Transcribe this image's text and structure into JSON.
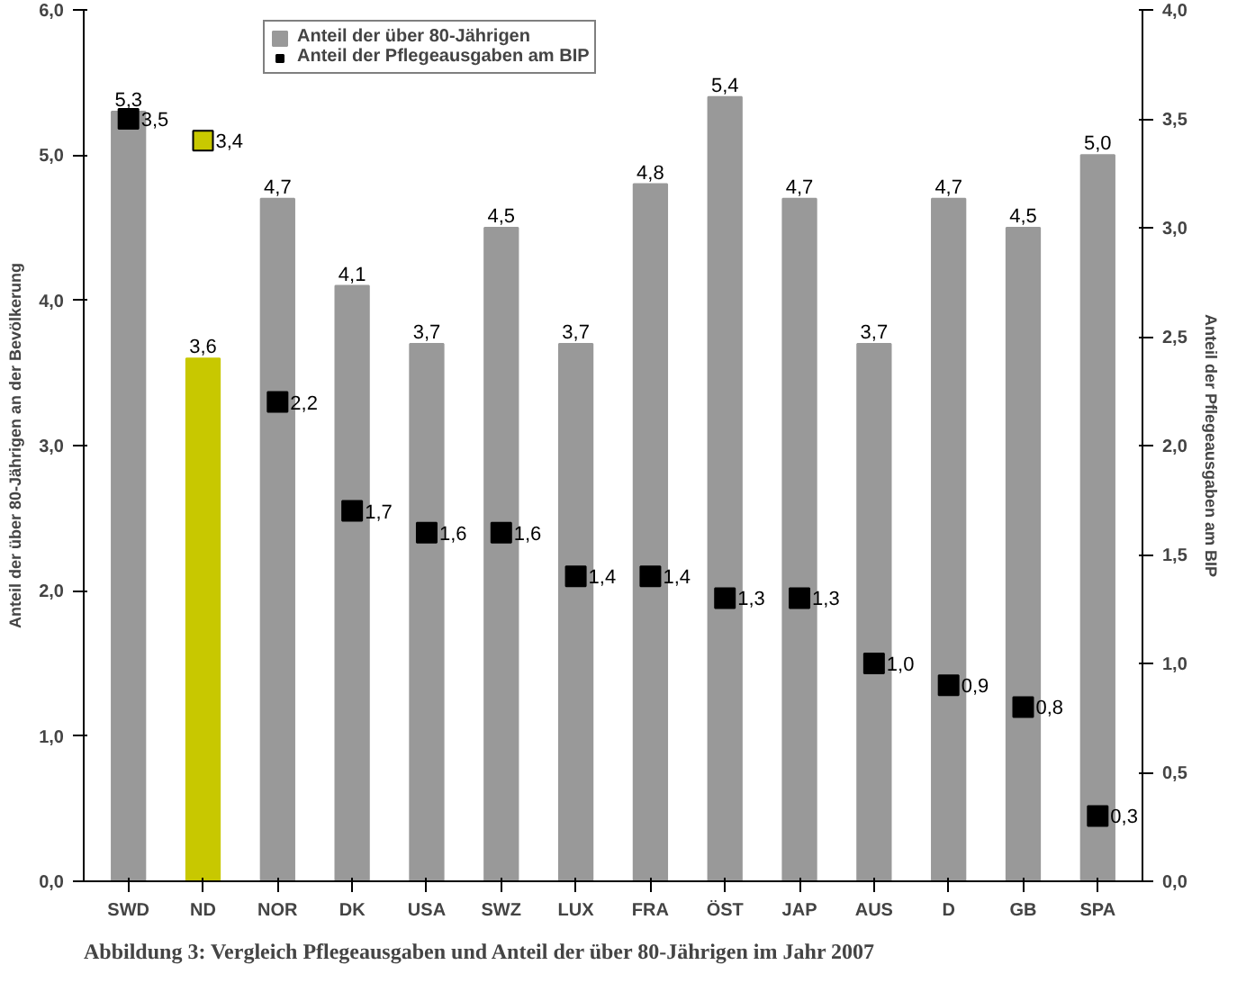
{
  "chart_data": {
    "type": "bar",
    "ylabel": "Anteil der über 80-Jährigen an der Bevölkerung",
    "y2label": "Anteil der Pflegeausgaben am BIP",
    "categories": [
      "SWD",
      "ND",
      "NOR",
      "DK",
      "USA",
      "SWZ",
      "LUX",
      "FRA",
      "ÖST",
      "JAP",
      "AUS",
      "D",
      "GB",
      "SPA"
    ],
    "series": [
      {
        "name": "Anteil der über 80-Jährigen",
        "colors": [
          "#999999",
          "#c8c800",
          "#999999",
          "#999999",
          "#999999",
          "#999999",
          "#999999",
          "#999999",
          "#999999",
          "#999999",
          "#999999",
          "#999999",
          "#999999",
          "#999999"
        ],
        "values": [
          5.3,
          3.6,
          4.7,
          4.1,
          3.7,
          4.5,
          3.7,
          4.8,
          5.4,
          4.7,
          3.7,
          4.7,
          4.5,
          5.0
        ],
        "value_labels": [
          "5,3",
          "3,6",
          "4,7",
          "4,1",
          "3,7",
          "4,5",
          "3,7",
          "4,8",
          "5,4",
          "4,7",
          "3,7",
          "4,7",
          "4,5",
          "5,0"
        ]
      },
      {
        "name": "Anteil der Pflegeausgaben am BIP",
        "type": "scatter",
        "axis": "y2",
        "marker": "square",
        "colors": [
          "#000000",
          "#c8c800",
          "#000000",
          "#000000",
          "#000000",
          "#000000",
          "#000000",
          "#000000",
          "#000000",
          "#000000",
          "#000000",
          "#000000",
          "#000000",
          "#000000"
        ],
        "values": [
          3.5,
          3.4,
          2.2,
          1.7,
          1.6,
          1.6,
          1.4,
          1.4,
          1.3,
          1.3,
          1.0,
          0.9,
          0.8,
          0.3
        ],
        "value_labels": [
          "3,5",
          "3,4",
          "2,2",
          "1,7",
          "1,6",
          "1,6",
          "1,4",
          "1,4",
          "1,3",
          "1,3",
          "1,0",
          "0,9",
          "0,8",
          "0,3"
        ]
      }
    ],
    "ylim": [
      0,
      6
    ],
    "yticks": [
      {
        "value": 0,
        "label": "0,0"
      },
      {
        "value": 1,
        "label": "1,0"
      },
      {
        "value": 2,
        "label": "2,0"
      },
      {
        "value": 3,
        "label": "3,0"
      },
      {
        "value": 4,
        "label": "4,0"
      },
      {
        "value": 5,
        "label": "5,0"
      },
      {
        "value": 6,
        "label": "6,0"
      }
    ],
    "y2lim": [
      0,
      4
    ],
    "y2ticks": [
      {
        "value": 0,
        "label": "0,0"
      },
      {
        "value": 0.5,
        "label": "0,5"
      },
      {
        "value": 1,
        "label": "1,0"
      },
      {
        "value": 1.5,
        "label": "1,5"
      },
      {
        "value": 2,
        "label": "2,0"
      },
      {
        "value": 2.5,
        "label": "2,5"
      },
      {
        "value": 3,
        "label": "3,0"
      },
      {
        "value": 3.5,
        "label": "3,5"
      },
      {
        "value": 4,
        "label": "4,0"
      }
    ],
    "legend": "top",
    "grid": false,
    "annotations": [
      "Abbildung 3: Vergleich Pflegeausgaben und Anteil der über 80-Jährigen im Jahr 2007"
    ]
  }
}
